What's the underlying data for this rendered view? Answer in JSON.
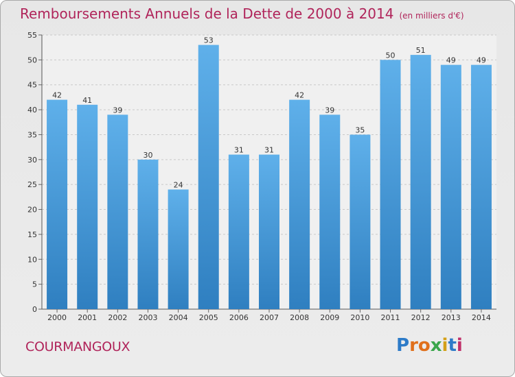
{
  "title": "Remboursements Annuels de la Dette de 2000 à 2014",
  "unit": "(en milliers d'€)",
  "commune": "COURMANGOUX",
  "logo": {
    "letters": [
      "P",
      "r",
      "o",
      "x",
      "i",
      "t",
      "i"
    ],
    "colors": [
      "#2d7bc8",
      "#e0701c",
      "#e0701c",
      "#3aa64b",
      "#d4a017",
      "#2d7bc8",
      "#c0306a"
    ]
  },
  "colors": {
    "bar_top": "#5fb0ea",
    "bar_bottom": "#2f7fc0",
    "title": "#b0245a"
  },
  "chart_data": {
    "type": "bar",
    "title": "Remboursements Annuels de la Dette de 2000 à 2014",
    "subtitle": "(en milliers d'€)",
    "categories": [
      "2000",
      "2001",
      "2002",
      "2003",
      "2004",
      "2005",
      "2006",
      "2007",
      "2008",
      "2009",
      "2010",
      "2011",
      "2012",
      "2013",
      "2014"
    ],
    "values": [
      42,
      41,
      39,
      30,
      24,
      53,
      31,
      31,
      42,
      39,
      35,
      50,
      51,
      49,
      49
    ],
    "ylim": [
      0,
      55
    ],
    "yticks": [
      0,
      5,
      10,
      15,
      20,
      25,
      30,
      35,
      40,
      45,
      50,
      55
    ],
    "grid": true,
    "data_labels": true
  }
}
